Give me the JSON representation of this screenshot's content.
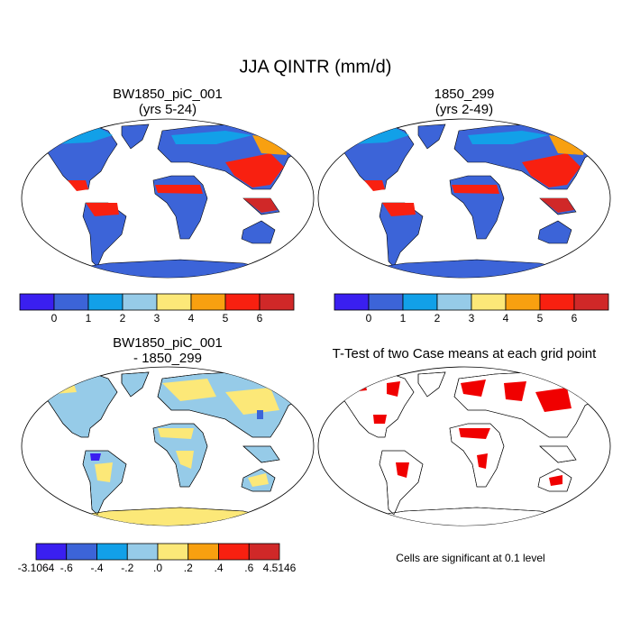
{
  "title": "JJA QINTR (mm/d)",
  "panels": [
    {
      "title": "BW1850_piC_001",
      "subtitle": "(yrs 5-24)"
    },
    {
      "title": "1850_299",
      "subtitle": "(yrs 2-49)"
    },
    {
      "title": "BW1850_piC_001",
      "subtitle": "- 1850_299"
    },
    {
      "title": "T-Test of two Case means at each grid point"
    }
  ],
  "colorbars": [
    {
      "colors": [
        "#3a1ff0",
        "#3c64d8",
        "#12a0e8",
        "#96cbe8",
        "#fce878",
        "#f8a010",
        "#f82010",
        "#d02828"
      ],
      "labels": [
        "0",
        "1",
        "2",
        "3",
        "4",
        "5",
        "6"
      ]
    },
    {
      "colors": [
        "#3a1ff0",
        "#3c64d8",
        "#12a0e8",
        "#96cbe8",
        "#fce878",
        "#f8a010",
        "#f82010",
        "#d02828"
      ],
      "labels": [
        "0",
        "1",
        "2",
        "3",
        "4",
        "5",
        "6"
      ]
    },
    {
      "colors": [
        "#3a1ff0",
        "#3c64d8",
        "#12a0e8",
        "#96cbe8",
        "#fce878",
        "#f8a010",
        "#f82010",
        "#d02828"
      ],
      "labels": [
        "-3.1064",
        "-.6",
        "-.4",
        "-.2",
        ".0",
        ".2",
        ".4",
        ".6",
        "4.5146"
      ]
    }
  ],
  "note": "Cells are significant at 0.1 level"
}
